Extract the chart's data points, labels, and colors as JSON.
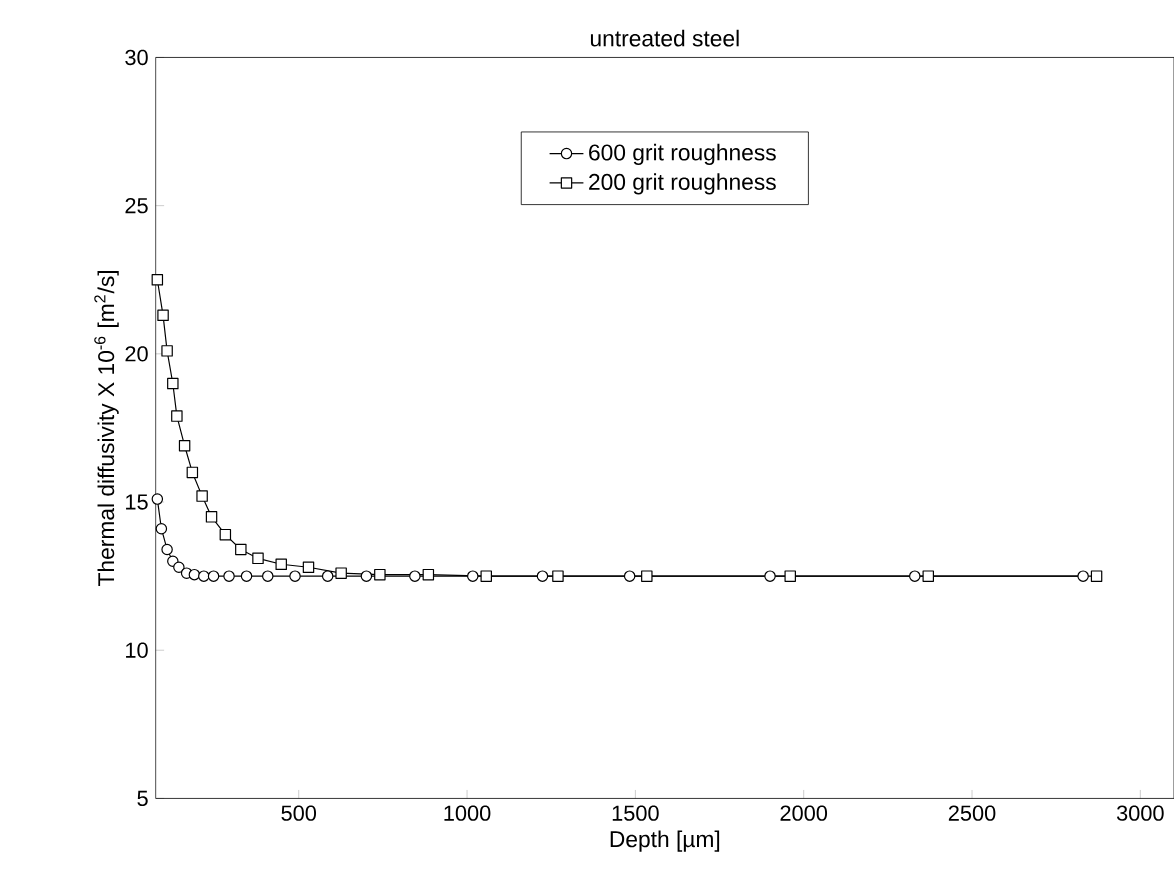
{
  "chart_data": {
    "type": "line",
    "title": "untreated  steel",
    "xlabel": "Depth  [µm]",
    "ylabel": "Thermal diffusivity X 10$^{-6}$ [m$^{2}$/s]",
    "xlim": [
      75,
      3100
    ],
    "ylim": [
      5,
      30
    ],
    "xticks": [
      500,
      1000,
      1500,
      2000,
      2500,
      3000
    ],
    "yticks": [
      5,
      10,
      15,
      20,
      25,
      30
    ],
    "grid": false,
    "legend": "top",
    "line_style": "solid",
    "series": [
      {
        "name": "600 grit roughness",
        "color": "#000000",
        "marker": "circle",
        "x": [
          80,
          92,
          109,
          126,
          144,
          167,
          190,
          218,
          247,
          293,
          345,
          408,
          489,
          586,
          701,
          845,
          1017,
          1224,
          1483,
          1900,
          2330,
          2830
        ],
        "values": [
          15.1,
          14.1,
          13.4,
          13.0,
          12.8,
          12.6,
          12.55,
          12.5,
          12.5,
          12.5,
          12.5,
          12.5,
          12.5,
          12.5,
          12.5,
          12.5,
          12.5,
          12.5,
          12.5,
          12.5,
          12.5,
          12.5
        ]
      },
      {
        "name": "200 grit roughness",
        "color": "#000000",
        "marker": "square",
        "x": [
          80,
          97,
          109,
          126,
          138,
          161,
          184,
          213,
          241,
          282,
          328,
          379,
          448,
          529,
          626,
          741,
          885,
          1057,
          1270,
          1534,
          1960,
          2370,
          2870
        ],
        "values": [
          22.5,
          21.3,
          20.1,
          19.0,
          17.9,
          16.9,
          16.0,
          15.2,
          14.5,
          13.9,
          13.4,
          13.1,
          12.9,
          12.8,
          12.6,
          12.55,
          12.55,
          12.5,
          12.5,
          12.5,
          12.5,
          12.5,
          12.5
        ]
      }
    ]
  }
}
